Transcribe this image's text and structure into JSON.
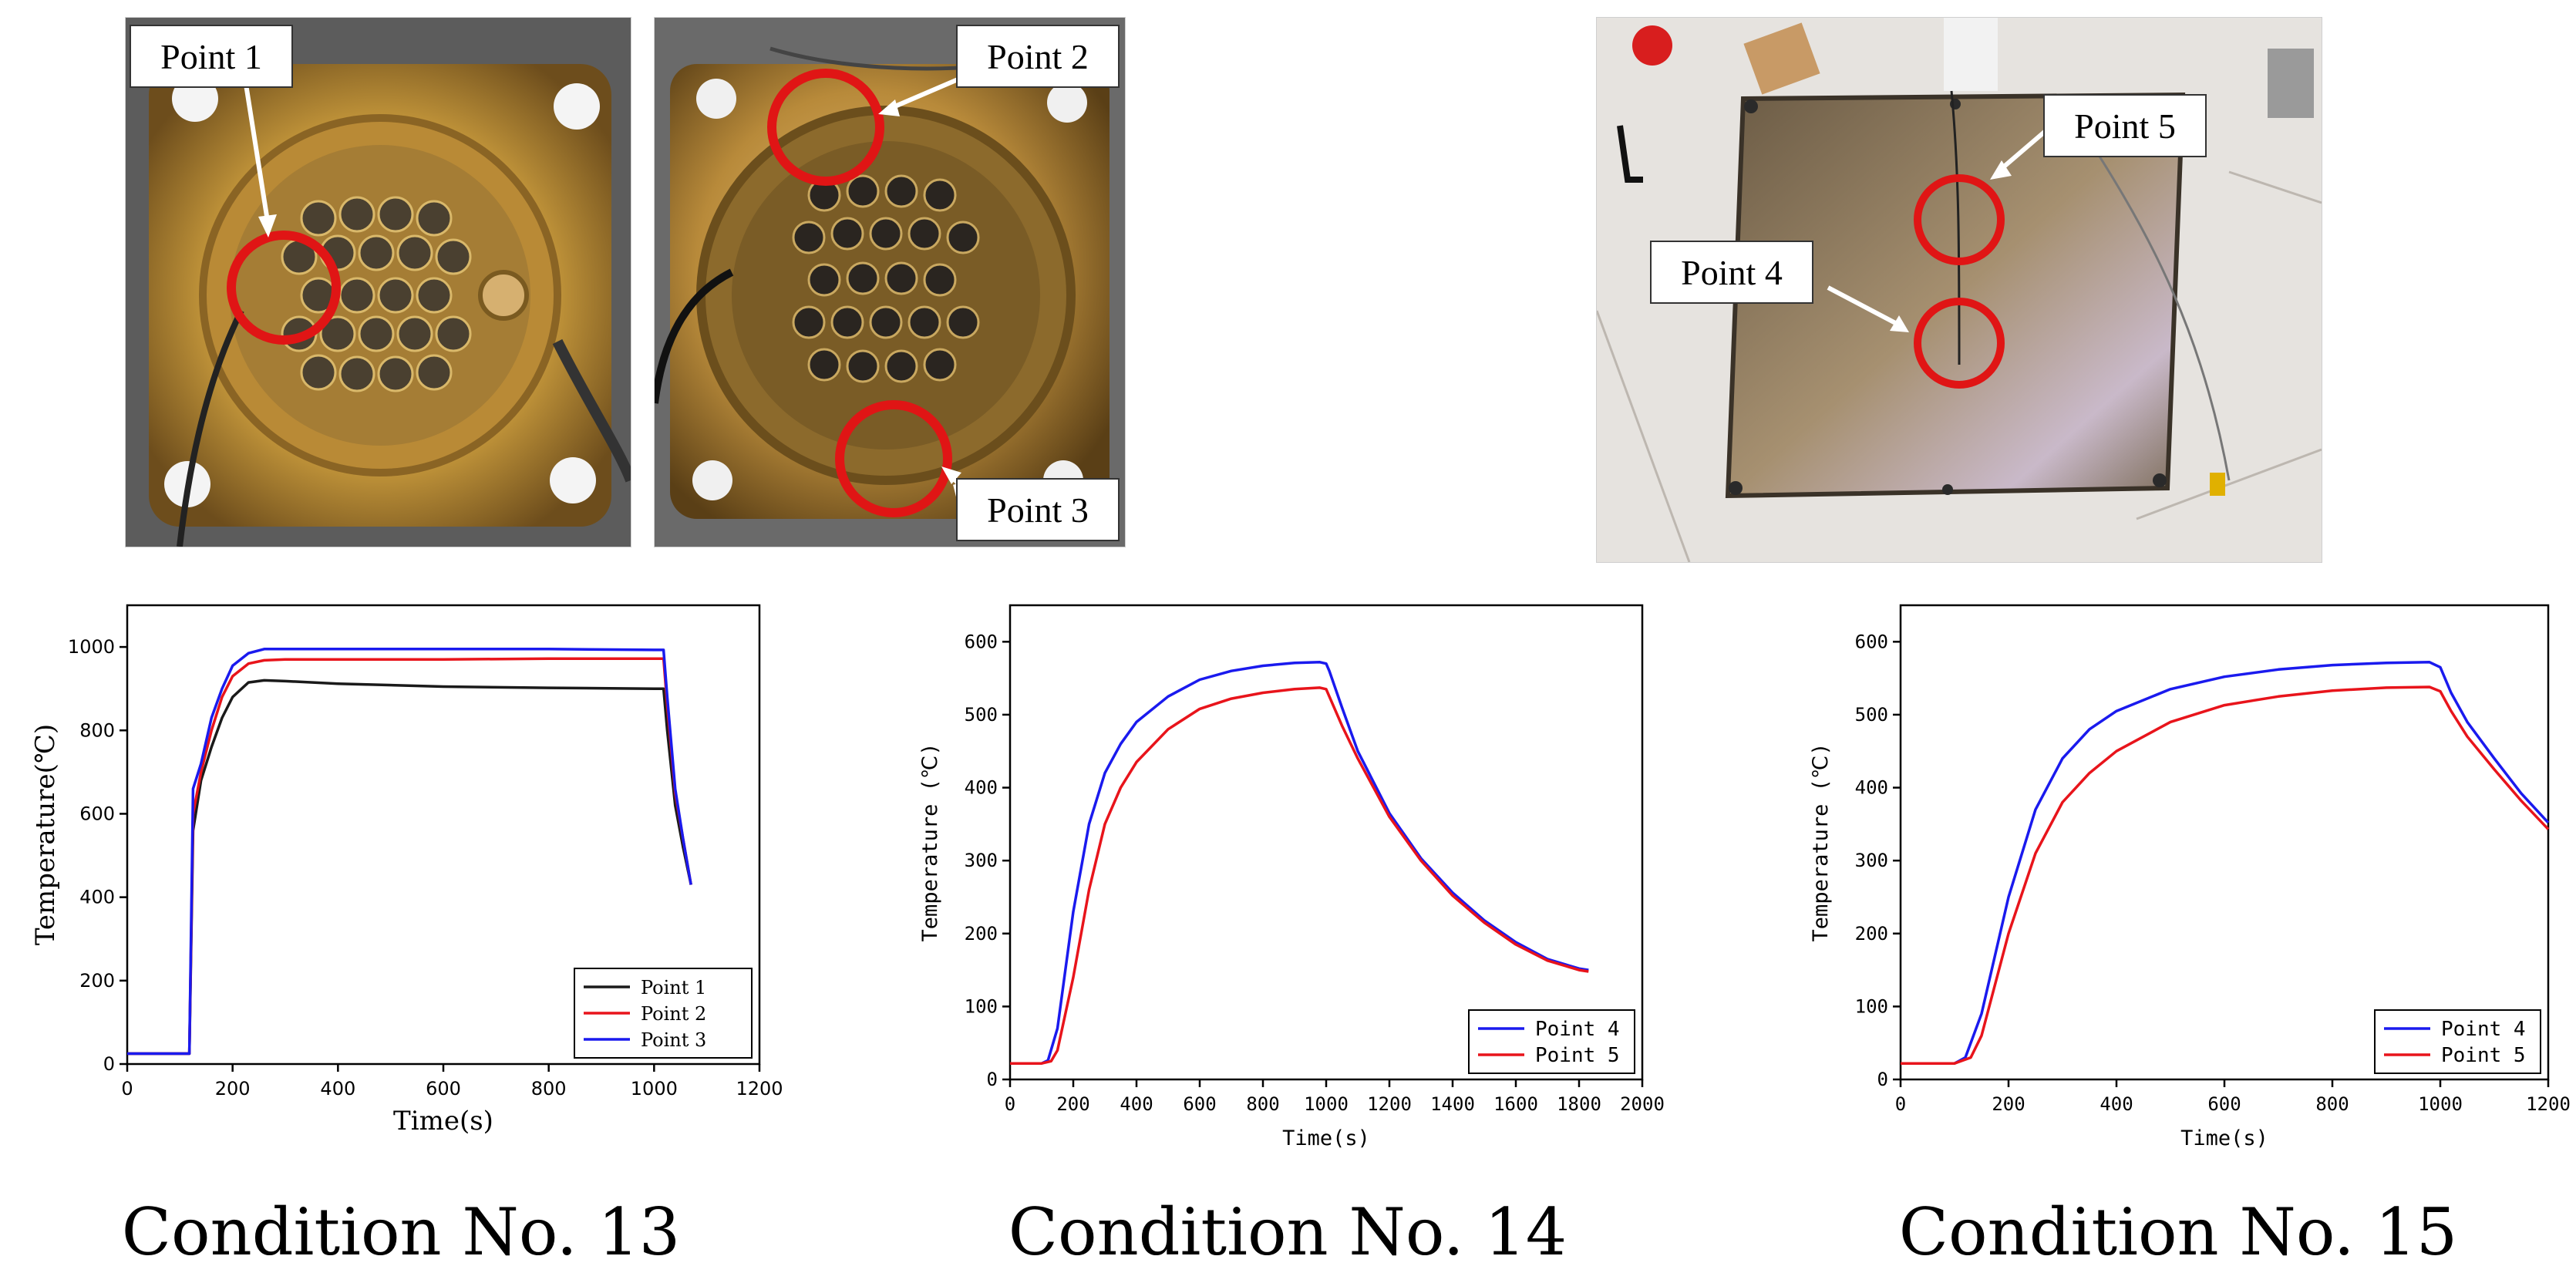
{
  "photos": [
    {
      "id": "p1",
      "callout": "Point 1"
    },
    {
      "id": "p2",
      "callouts": [
        "Point 2",
        "Point 3"
      ]
    },
    {
      "id": "p3",
      "callouts": [
        "Point 5",
        "Point 4"
      ]
    }
  ],
  "captions": [
    "Condition No. 13",
    "Condition No. 14",
    "Condition No. 15"
  ],
  "colors": {
    "black": "#1a1a1a",
    "red": "#e8141b",
    "blue": "#1a1aee",
    "callout_red": "#e01515"
  },
  "chart_data": [
    {
      "type": "line",
      "xlabel": "Time(s)",
      "ylabel": "Temperature(℃)",
      "xlim": [
        0,
        1200
      ],
      "ylim": [
        0,
        1100
      ],
      "xticks": [
        0,
        200,
        400,
        600,
        800,
        1000,
        1200
      ],
      "yticks": [
        0,
        200,
        400,
        600,
        800,
        1000
      ],
      "legend_position": "bottom-right",
      "series": [
        {
          "name": "Point 1",
          "color": "#1a1a1a",
          "x": [
            0,
            110,
            118,
            125,
            140,
            160,
            180,
            200,
            230,
            260,
            300,
            400,
            600,
            800,
            1000,
            1018,
            1025,
            1040,
            1055,
            1070
          ],
          "y": [
            25,
            25,
            25,
            560,
            680,
            760,
            830,
            880,
            915,
            920,
            918,
            912,
            905,
            902,
            900,
            900,
            800,
            620,
            520,
            430
          ]
        },
        {
          "name": "Point 2",
          "color": "#e8141b",
          "x": [
            0,
            110,
            118,
            125,
            140,
            160,
            180,
            200,
            230,
            260,
            300,
            400,
            600,
            800,
            1000,
            1018,
            1025,
            1040,
            1055,
            1070
          ],
          "y": [
            25,
            25,
            25,
            600,
            700,
            800,
            880,
            930,
            960,
            968,
            970,
            970,
            970,
            972,
            972,
            972,
            860,
            650,
            540,
            430
          ]
        },
        {
          "name": "Point 3",
          "color": "#1a1aee",
          "x": [
            0,
            110,
            118,
            125,
            140,
            160,
            180,
            200,
            230,
            260,
            300,
            400,
            600,
            800,
            1000,
            1018,
            1025,
            1040,
            1055,
            1070
          ],
          "y": [
            25,
            25,
            25,
            660,
            720,
            830,
            900,
            955,
            985,
            995,
            995,
            995,
            995,
            995,
            993,
            993,
            880,
            660,
            540,
            430
          ]
        }
      ]
    },
    {
      "type": "line",
      "xlabel": "Time(s)",
      "ylabel": "Temperature (℃)",
      "xlim": [
        0,
        2000
      ],
      "ylim": [
        0,
        650
      ],
      "xticks": [
        0,
        200,
        400,
        600,
        800,
        1000,
        1200,
        1400,
        1600,
        1800,
        2000
      ],
      "yticks": [
        0,
        100,
        200,
        300,
        400,
        500,
        600
      ],
      "legend_position": "bottom-right",
      "series": [
        {
          "name": "Point 4",
          "color": "#1a1aee",
          "x": [
            0,
            100,
            120,
            150,
            200,
            250,
            300,
            350,
            400,
            500,
            600,
            700,
            800,
            900,
            980,
            1000,
            1010,
            1050,
            1100,
            1200,
            1300,
            1400,
            1500,
            1600,
            1700,
            1800,
            1830
          ],
          "y": [
            22,
            22,
            26,
            70,
            230,
            350,
            420,
            460,
            490,
            525,
            548,
            560,
            567,
            571,
            572,
            570,
            560,
            510,
            450,
            365,
            303,
            256,
            218,
            188,
            165,
            152,
            150
          ]
        },
        {
          "name": "Point 5",
          "color": "#e8141b",
          "x": [
            0,
            100,
            130,
            150,
            200,
            250,
            300,
            350,
            400,
            500,
            600,
            700,
            800,
            900,
            980,
            1000,
            1010,
            1050,
            1100,
            1200,
            1300,
            1400,
            1500,
            1600,
            1700,
            1800,
            1830
          ],
          "y": [
            22,
            22,
            25,
            40,
            140,
            260,
            350,
            400,
            435,
            480,
            508,
            522,
            530,
            535,
            537,
            535,
            525,
            485,
            440,
            360,
            300,
            252,
            215,
            185,
            163,
            150,
            148
          ]
        }
      ]
    },
    {
      "type": "line",
      "xlabel": "Time(s)",
      "ylabel": "Temperature (℃)",
      "xlim": [
        0,
        1200
      ],
      "ylim": [
        0,
        650
      ],
      "xticks": [
        0,
        200,
        400,
        600,
        800,
        1000,
        1200
      ],
      "yticks": [
        0,
        100,
        200,
        300,
        400,
        500,
        600
      ],
      "legend_position": "bottom-right",
      "series": [
        {
          "name": "Point 4",
          "color": "#1a1aee",
          "x": [
            0,
            100,
            120,
            150,
            200,
            250,
            300,
            350,
            400,
            500,
            600,
            700,
            800,
            900,
            980,
            1000,
            1020,
            1050,
            1100,
            1150,
            1200
          ],
          "y": [
            22,
            22,
            30,
            90,
            250,
            370,
            440,
            480,
            505,
            535,
            552,
            562,
            568,
            571,
            572,
            565,
            530,
            490,
            440,
            392,
            352
          ]
        },
        {
          "name": "Point 5",
          "color": "#e8141b",
          "x": [
            0,
            100,
            130,
            150,
            200,
            250,
            300,
            350,
            400,
            500,
            600,
            700,
            800,
            900,
            980,
            1000,
            1020,
            1050,
            1100,
            1150,
            1200
          ],
          "y": [
            22,
            22,
            30,
            60,
            200,
            310,
            380,
            420,
            450,
            490,
            513,
            525,
            533,
            537,
            538,
            532,
            505,
            470,
            425,
            382,
            343
          ]
        }
      ]
    }
  ]
}
